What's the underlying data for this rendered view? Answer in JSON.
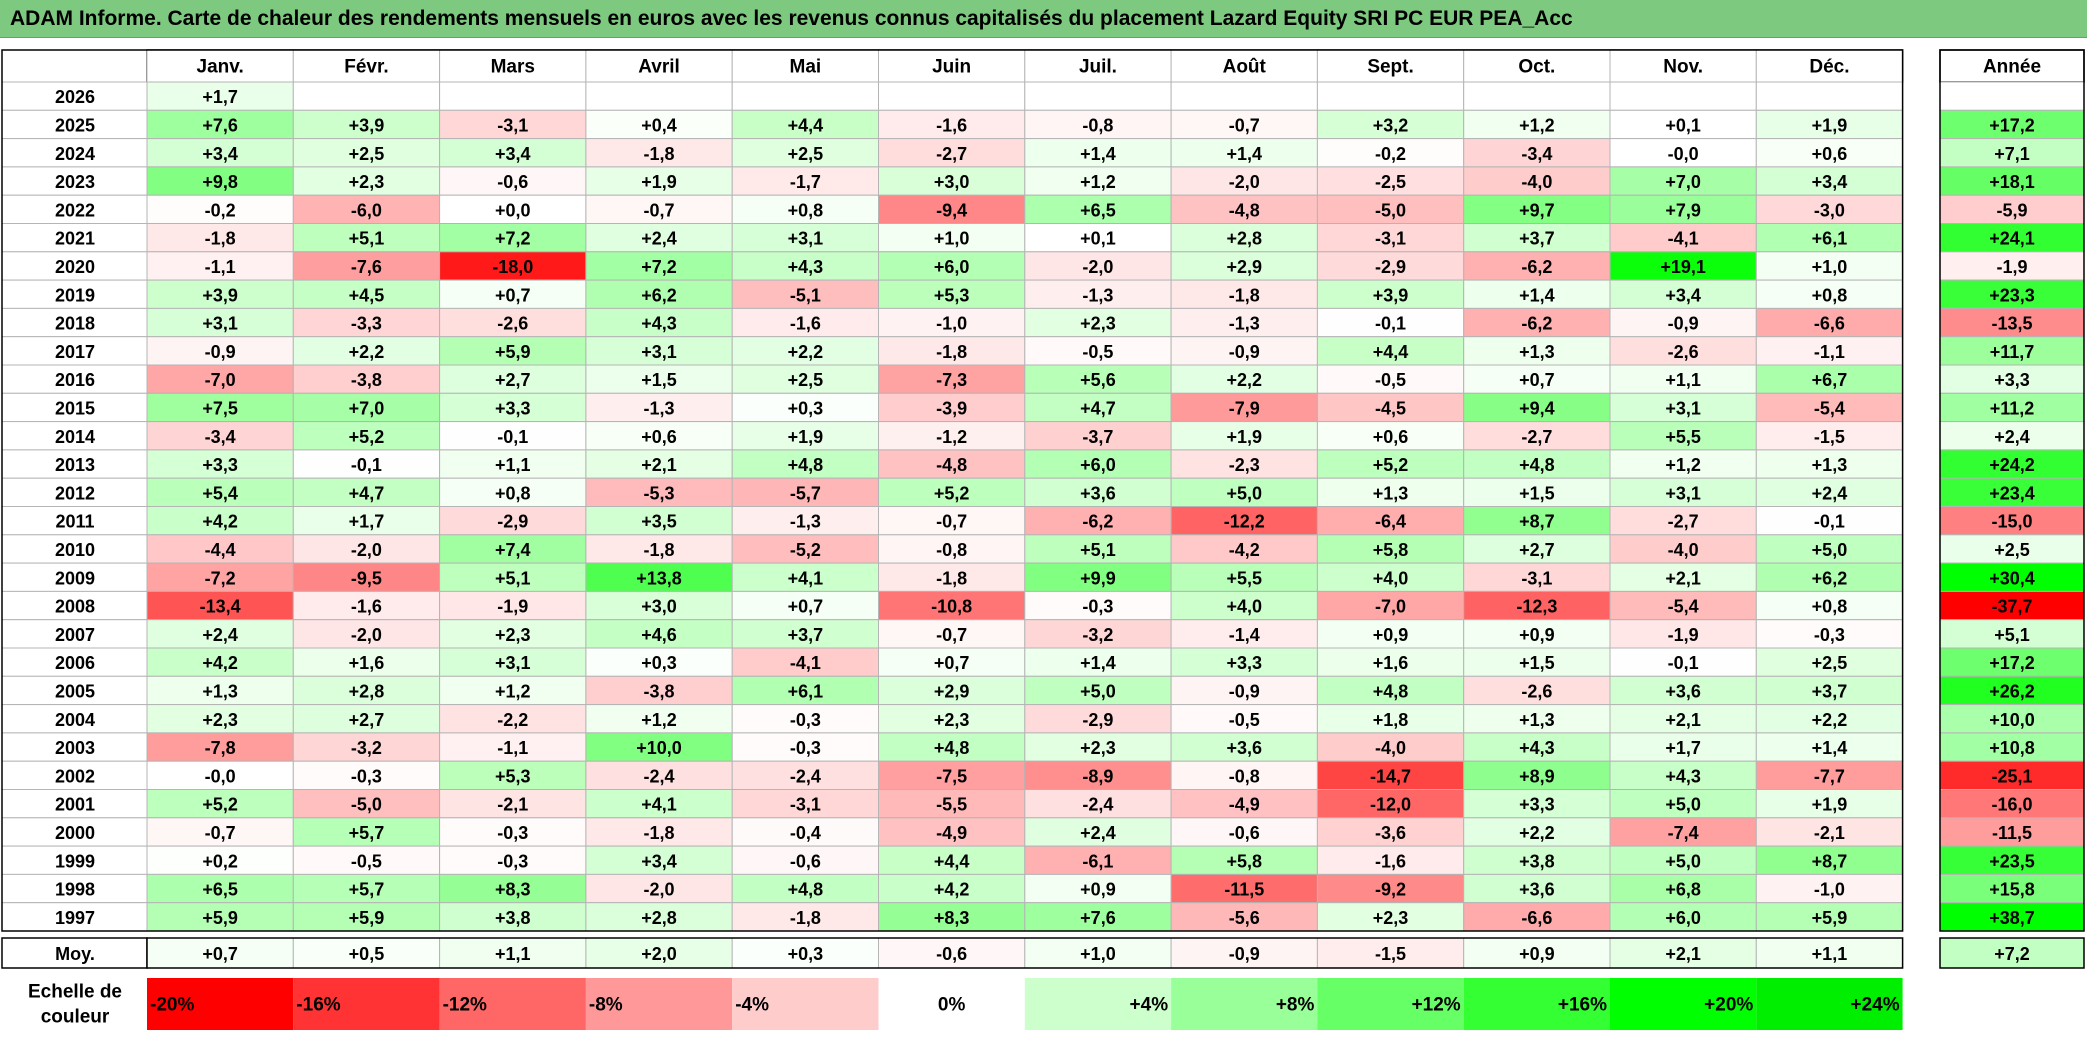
{
  "title": "ADAM Informe. Carte de chaleur des rendements mensuels en euros avec les revenus connus capitalisés du placement Lazard Equity SRI PC EUR PEA_Acc",
  "chart_data": {
    "type": "heatmap",
    "columns": [
      "Janv.",
      "Févr.",
      "Mars",
      "Avril",
      "Mai",
      "Juin",
      "Juil.",
      "Août",
      "Sept.",
      "Oct.",
      "Nov.",
      "Déc."
    ],
    "annual_label": "Année",
    "average_label": "Moy.",
    "rows": [
      {
        "year": "2026",
        "months": [
          "+1,7",
          "",
          "",
          "",
          "",
          "",
          "",
          "",
          "",
          "",
          "",
          ""
        ],
        "annual": ""
      },
      {
        "year": "2025",
        "months": [
          "+7,6",
          "+3,9",
          "-3,1",
          "+0,4",
          "+4,4",
          "-1,6",
          "-0,8",
          "-0,7",
          "+3,2",
          "+1,2",
          "+0,1",
          "+1,9"
        ],
        "annual": "+17,2"
      },
      {
        "year": "2024",
        "months": [
          "+3,4",
          "+2,5",
          "+3,4",
          "-1,8",
          "+2,5",
          "-2,7",
          "+1,4",
          "+1,4",
          "-0,2",
          "-3,4",
          "-0,0",
          "+0,6"
        ],
        "annual": "+7,1"
      },
      {
        "year": "2023",
        "months": [
          "+9,8",
          "+2,3",
          "-0,6",
          "+1,9",
          "-1,7",
          "+3,0",
          "+1,2",
          "-2,0",
          "-2,5",
          "-4,0",
          "+7,0",
          "+3,4"
        ],
        "annual": "+18,1"
      },
      {
        "year": "2022",
        "months": [
          "-0,2",
          "-6,0",
          "+0,0",
          "-0,7",
          "+0,8",
          "-9,4",
          "+6,5",
          "-4,8",
          "-5,0",
          "+9,7",
          "+7,9",
          "-3,0"
        ],
        "annual": "-5,9"
      },
      {
        "year": "2021",
        "months": [
          "-1,8",
          "+5,1",
          "+7,2",
          "+2,4",
          "+3,1",
          "+1,0",
          "+0,1",
          "+2,8",
          "-3,1",
          "+3,7",
          "-4,1",
          "+6,1"
        ],
        "annual": "+24,1"
      },
      {
        "year": "2020",
        "months": [
          "-1,1",
          "-7,6",
          "-18,0",
          "+7,2",
          "+4,3",
          "+6,0",
          "-2,0",
          "+2,9",
          "-2,9",
          "-6,2",
          "+19,1",
          "+1,0"
        ],
        "annual": "-1,9"
      },
      {
        "year": "2019",
        "months": [
          "+3,9",
          "+4,5",
          "+0,7",
          "+6,2",
          "-5,1",
          "+5,3",
          "-1,3",
          "-1,8",
          "+3,9",
          "+1,4",
          "+3,4",
          "+0,8"
        ],
        "annual": "+23,3"
      },
      {
        "year": "2018",
        "months": [
          "+3,1",
          "-3,3",
          "-2,6",
          "+4,3",
          "-1,6",
          "-1,0",
          "+2,3",
          "-1,3",
          "-0,1",
          "-6,2",
          "-0,9",
          "-6,6"
        ],
        "annual": "-13,5"
      },
      {
        "year": "2017",
        "months": [
          "-0,9",
          "+2,2",
          "+5,9",
          "+3,1",
          "+2,2",
          "-1,8",
          "-0,5",
          "-0,9",
          "+4,4",
          "+1,3",
          "-2,6",
          "-1,1"
        ],
        "annual": "+11,7"
      },
      {
        "year": "2016",
        "months": [
          "-7,0",
          "-3,8",
          "+2,7",
          "+1,5",
          "+2,5",
          "-7,3",
          "+5,6",
          "+2,2",
          "-0,5",
          "+0,7",
          "+1,1",
          "+6,7"
        ],
        "annual": "+3,3"
      },
      {
        "year": "2015",
        "months": [
          "+7,5",
          "+7,0",
          "+3,3",
          "-1,3",
          "+0,3",
          "-3,9",
          "+4,7",
          "-7,9",
          "-4,5",
          "+9,4",
          "+3,1",
          "-5,4"
        ],
        "annual": "+11,2"
      },
      {
        "year": "2014",
        "months": [
          "-3,4",
          "+5,2",
          "-0,1",
          "+0,6",
          "+1,9",
          "-1,2",
          "-3,7",
          "+1,9",
          "+0,6",
          "-2,7",
          "+5,5",
          "-1,5"
        ],
        "annual": "+2,4"
      },
      {
        "year": "2013",
        "months": [
          "+3,3",
          "-0,1",
          "+1,1",
          "+2,1",
          "+4,8",
          "-4,8",
          "+6,0",
          "-2,3",
          "+5,2",
          "+4,8",
          "+1,2",
          "+1,3"
        ],
        "annual": "+24,2"
      },
      {
        "year": "2012",
        "months": [
          "+5,4",
          "+4,7",
          "+0,8",
          "-5,3",
          "-5,7",
          "+5,2",
          "+3,6",
          "+5,0",
          "+1,3",
          "+1,5",
          "+3,1",
          "+2,4"
        ],
        "annual": "+23,4"
      },
      {
        "year": "2011",
        "months": [
          "+4,2",
          "+1,7",
          "-2,9",
          "+3,5",
          "-1,3",
          "-0,7",
          "-6,2",
          "-12,2",
          "-6,4",
          "+8,7",
          "-2,7",
          "-0,1"
        ],
        "annual": "-15,0"
      },
      {
        "year": "2010",
        "months": [
          "-4,4",
          "-2,0",
          "+7,4",
          "-1,8",
          "-5,2",
          "-0,8",
          "+5,1",
          "-4,2",
          "+5,8",
          "+2,7",
          "-4,0",
          "+5,0"
        ],
        "annual": "+2,5"
      },
      {
        "year": "2009",
        "months": [
          "-7,2",
          "-9,5",
          "+5,1",
          "+13,8",
          "+4,1",
          "-1,8",
          "+9,9",
          "+5,5",
          "+4,0",
          "-3,1",
          "+2,1",
          "+6,2"
        ],
        "annual": "+30,4"
      },
      {
        "year": "2008",
        "months": [
          "-13,4",
          "-1,6",
          "-1,9",
          "+3,0",
          "+0,7",
          "-10,8",
          "-0,3",
          "+4,0",
          "-7,0",
          "-12,3",
          "-5,4",
          "+0,8"
        ],
        "annual": "-37,7"
      },
      {
        "year": "2007",
        "months": [
          "+2,4",
          "-2,0",
          "+2,3",
          "+4,6",
          "+3,7",
          "-0,7",
          "-3,2",
          "-1,4",
          "+0,9",
          "+0,9",
          "-1,9",
          "-0,3"
        ],
        "annual": "+5,1"
      },
      {
        "year": "2006",
        "months": [
          "+4,2",
          "+1,6",
          "+3,1",
          "+0,3",
          "-4,1",
          "+0,7",
          "+1,4",
          "+3,3",
          "+1,6",
          "+1,5",
          "-0,1",
          "+2,5"
        ],
        "annual": "+17,2"
      },
      {
        "year": "2005",
        "months": [
          "+1,3",
          "+2,8",
          "+1,2",
          "-3,8",
          "+6,1",
          "+2,9",
          "+5,0",
          "-0,9",
          "+4,8",
          "-2,6",
          "+3,6",
          "+3,7"
        ],
        "annual": "+26,2"
      },
      {
        "year": "2004",
        "months": [
          "+2,3",
          "+2,7",
          "-2,2",
          "+1,2",
          "-0,3",
          "+2,3",
          "-2,9",
          "-0,5",
          "+1,8",
          "+1,3",
          "+2,1",
          "+2,2"
        ],
        "annual": "+10,0"
      },
      {
        "year": "2003",
        "months": [
          "-7,8",
          "-3,2",
          "-1,1",
          "+10,0",
          "-0,3",
          "+4,8",
          "+2,3",
          "+3,6",
          "-4,0",
          "+4,3",
          "+1,7",
          "+1,4"
        ],
        "annual": "+10,8"
      },
      {
        "year": "2002",
        "months": [
          "-0,0",
          "-0,3",
          "+5,3",
          "-2,4",
          "-2,4",
          "-7,5",
          "-8,9",
          "-0,8",
          "-14,7",
          "+8,9",
          "+4,3",
          "-7,7"
        ],
        "annual": "-25,1"
      },
      {
        "year": "2001",
        "months": [
          "+5,2",
          "-5,0",
          "-2,1",
          "+4,1",
          "-3,1",
          "-5,5",
          "-2,4",
          "-4,9",
          "-12,0",
          "+3,3",
          "+5,0",
          "+1,9"
        ],
        "annual": "-16,0"
      },
      {
        "year": "2000",
        "months": [
          "-0,7",
          "+5,7",
          "-0,3",
          "-1,8",
          "-0,4",
          "-4,9",
          "+2,4",
          "-0,6",
          "-3,6",
          "+2,2",
          "-7,4",
          "-2,1"
        ],
        "annual": "-11,5"
      },
      {
        "year": "1999",
        "months": [
          "+0,2",
          "-0,5",
          "-0,3",
          "+3,4",
          "-0,6",
          "+4,4",
          "-6,1",
          "+5,8",
          "-1,6",
          "+3,8",
          "+5,0",
          "+8,7"
        ],
        "annual": "+23,5"
      },
      {
        "year": "1998",
        "months": [
          "+6,5",
          "+5,7",
          "+8,3",
          "-2,0",
          "+4,8",
          "+4,2",
          "+0,9",
          "-11,5",
          "-9,2",
          "+3,6",
          "+6,8",
          "-1,0"
        ],
        "annual": "+15,8"
      },
      {
        "year": "1997",
        "months": [
          "+5,9",
          "+5,9",
          "+3,8",
          "+2,8",
          "-1,8",
          "+8,3",
          "+7,6",
          "-5,6",
          "+2,3",
          "-6,6",
          "+6,0",
          "+5,9"
        ],
        "annual": "+38,7"
      }
    ],
    "averages": [
      "+0,7",
      "+0,5",
      "+1,1",
      "+2,0",
      "+0,3",
      "-0,6",
      "+1,0",
      "-0,9",
      "-1,5",
      "+0,9",
      "+2,1",
      "+1,1"
    ],
    "average_annual": "+7,2",
    "scale_label_line1": "Echelle de",
    "scale_label_line2": "couleur",
    "scale": [
      {
        "label": "-20%",
        "color": "#ff0000"
      },
      {
        "label": "-16%",
        "color": "#ff3333"
      },
      {
        "label": "-12%",
        "color": "#ff6666"
      },
      {
        "label": "-8%",
        "color": "#ff9999"
      },
      {
        "label": "-4%",
        "color": "#ffcccc"
      },
      {
        "label": "0%",
        "color": "#ffffff"
      },
      {
        "label": "+4%",
        "color": "#ccffcc"
      },
      {
        "label": "+8%",
        "color": "#99ff99"
      },
      {
        "label": "+12%",
        "color": "#66ff66"
      },
      {
        "label": "+16%",
        "color": "#33ff33"
      },
      {
        "label": "+20%",
        "color": "#00ff00"
      },
      {
        "label": "+24%",
        "color": "#00ee00"
      }
    ],
    "colors": {
      "title_bar": "#7dc97f",
      "grid": "#b5b5b5",
      "negative_max": "#ff0000",
      "positive_max": "#00ff00"
    }
  }
}
